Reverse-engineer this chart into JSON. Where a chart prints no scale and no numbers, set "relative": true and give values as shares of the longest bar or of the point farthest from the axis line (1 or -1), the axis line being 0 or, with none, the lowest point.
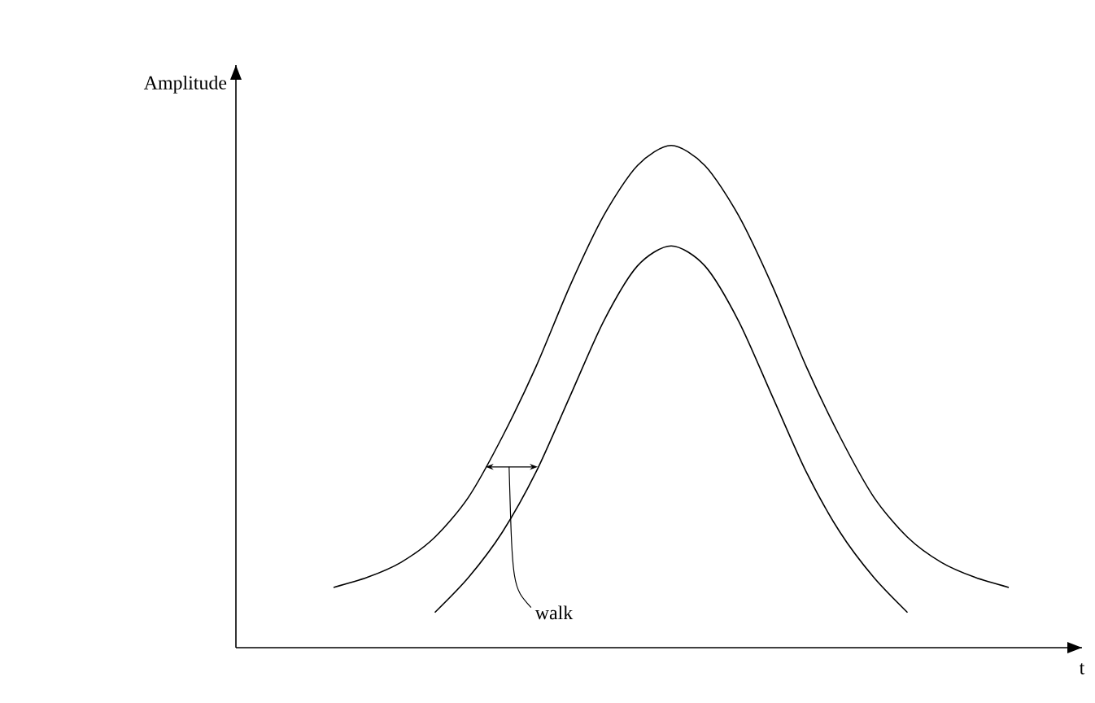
{
  "chart_data": {
    "type": "line",
    "relative": true,
    "xlabel": "t",
    "annotations": [
      "Amplitude",
      "walk"
    ],
    "categories": [
      null,
      null,
      null,
      null,
      null,
      null,
      null,
      null,
      null,
      null,
      null,
      null,
      null,
      null,
      null,
      null,
      null,
      null,
      null,
      null,
      null
    ],
    "series": [
      {
        "color": "#000000",
        "values": [
          0.12,
          0.14,
          0.17,
          0.22,
          0.3,
          0.42,
          0.56,
          0.72,
          0.86,
          0.96,
          1.0,
          0.96,
          0.86,
          0.72,
          0.56,
          0.42,
          0.3,
          0.22,
          0.17,
          0.14,
          0.12
        ]
      },
      {
        "color": "#000000",
        "values": [
          null,
          null,
          null,
          0.07,
          0.14,
          0.23,
          0.35,
          0.5,
          0.65,
          0.76,
          0.8,
          0.76,
          0.65,
          0.5,
          0.35,
          0.23,
          0.14,
          0.07,
          null,
          null,
          null
        ]
      }
    ]
  }
}
